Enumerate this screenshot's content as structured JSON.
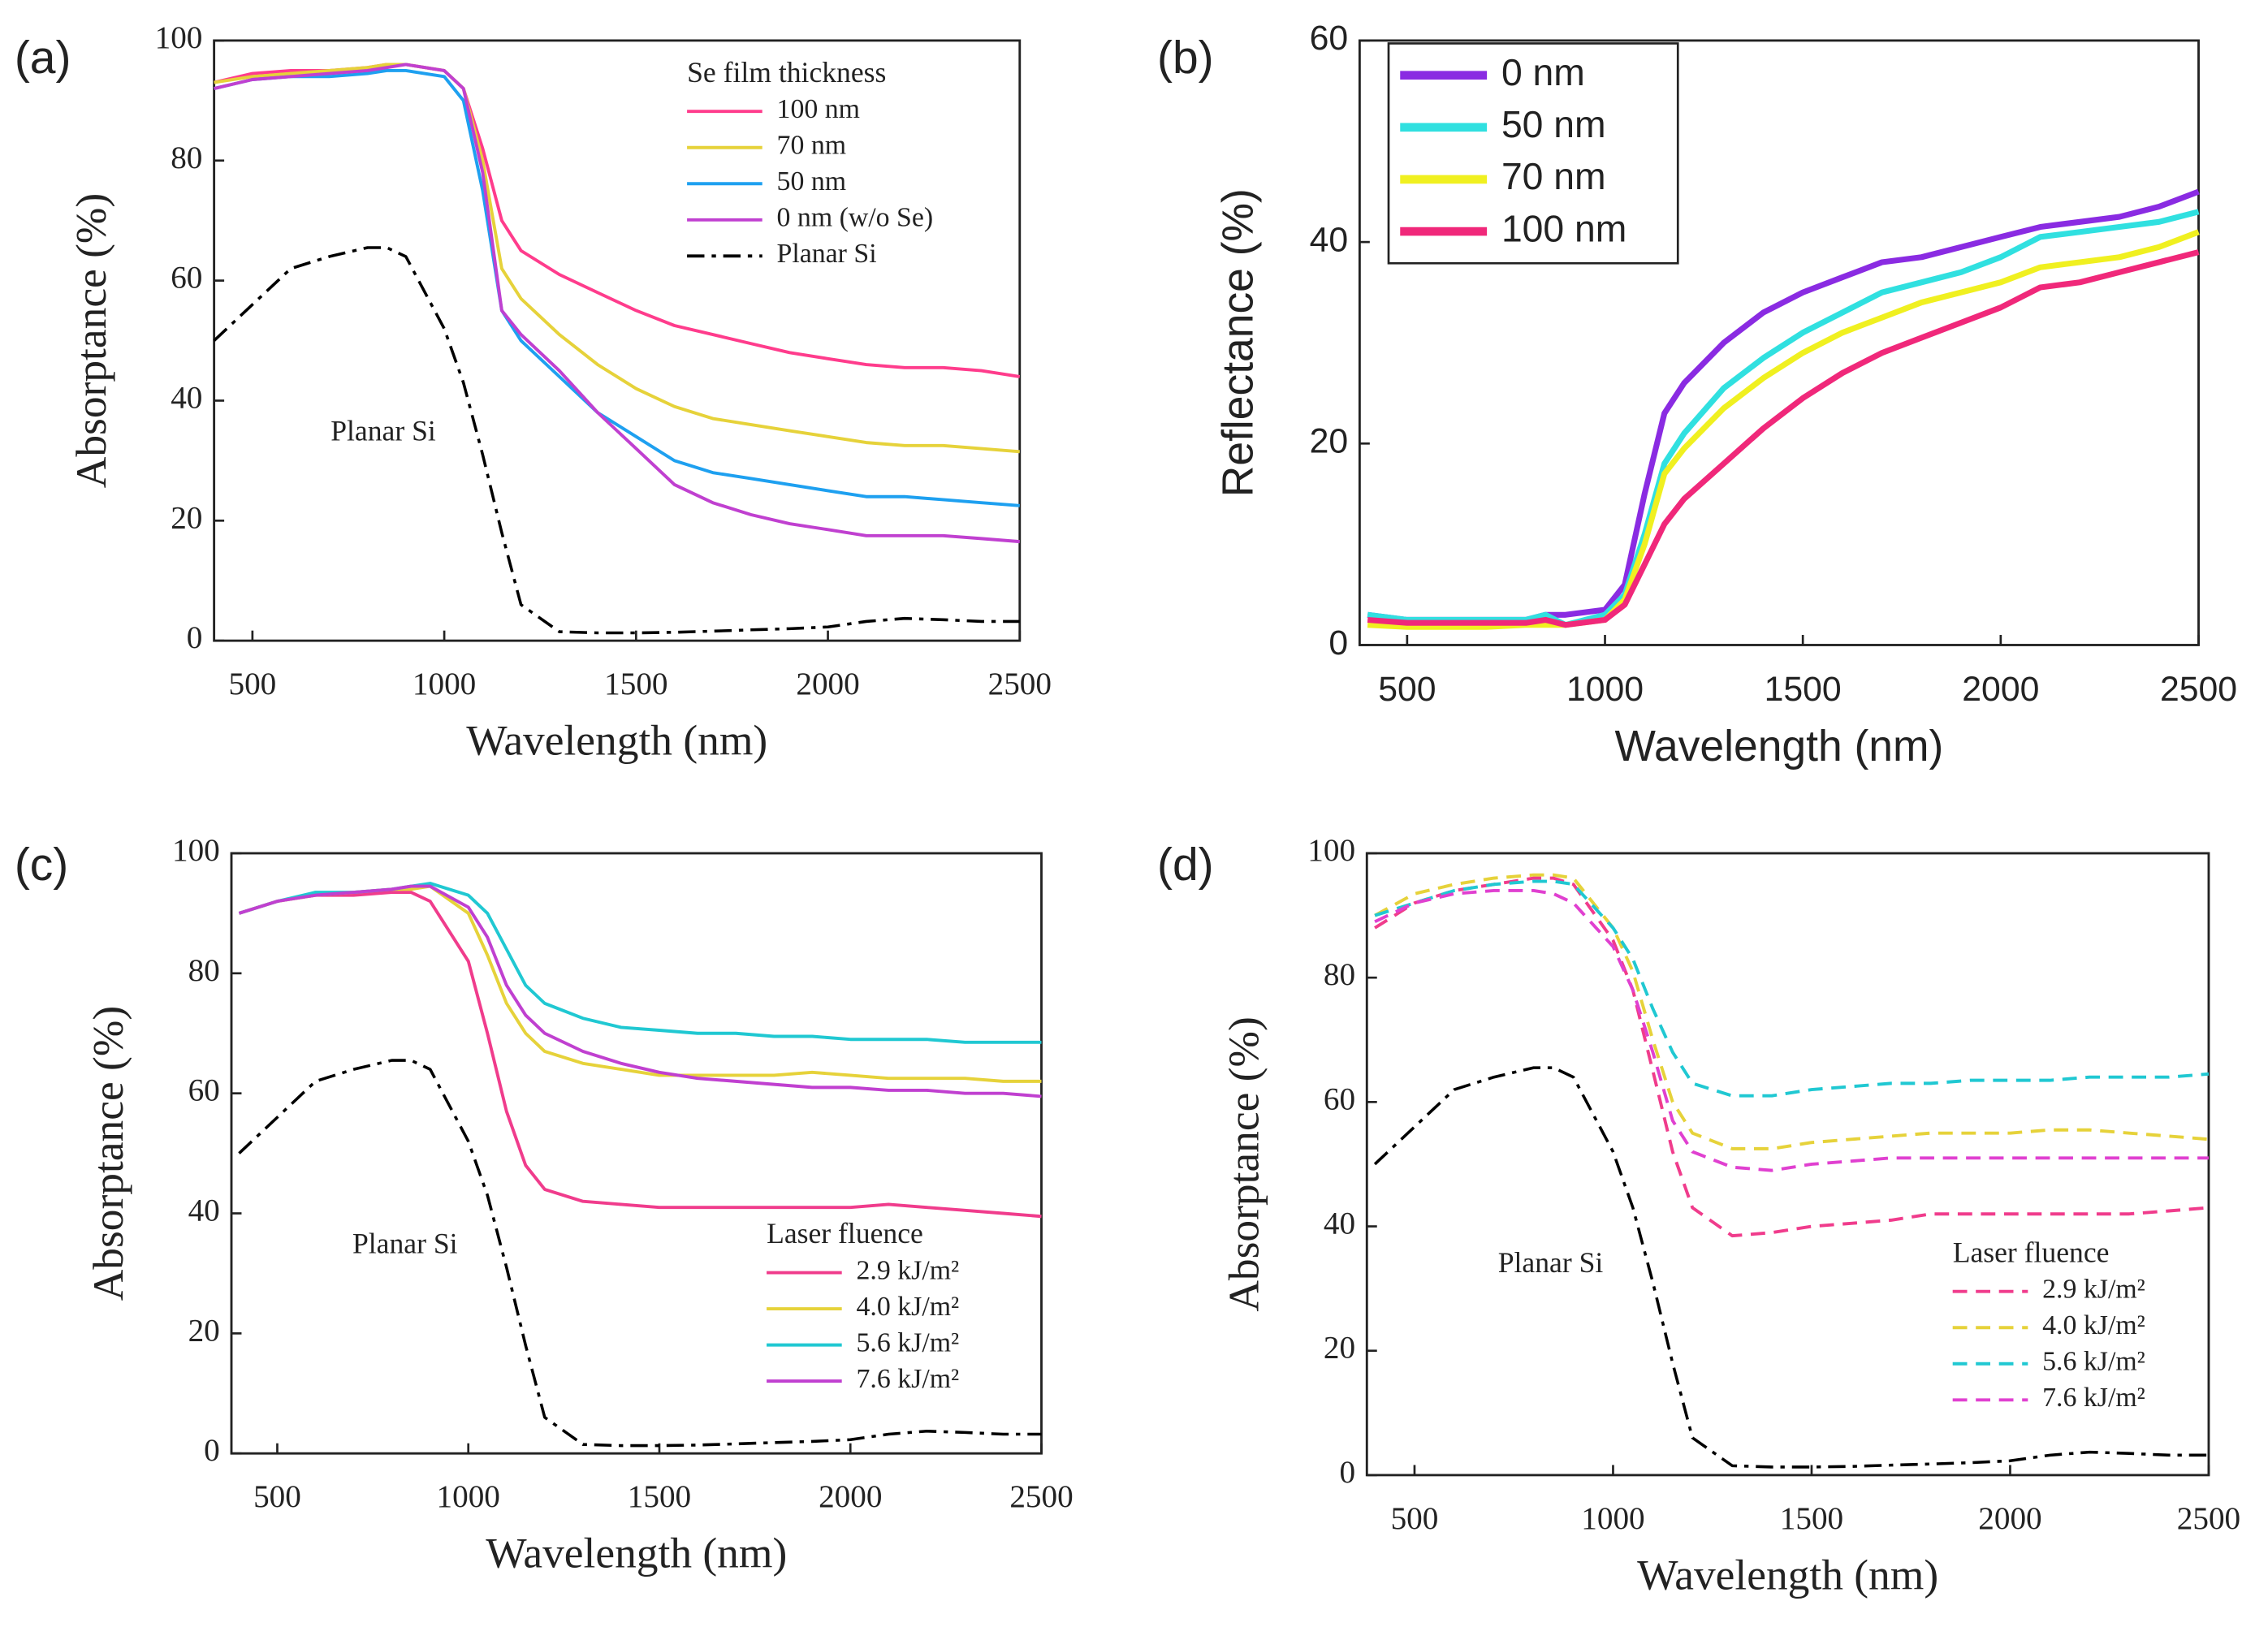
{
  "chart_data": [
    {
      "type": "line",
      "label": "(a)",
      "xlabel": "Wavelength (nm)",
      "ylabel": "Absorptance (%)",
      "legend_title": "Se film thickness",
      "legend": "upper right",
      "annotation": "Planar Si",
      "font": "serif",
      "xlim": [
        400,
        2500
      ],
      "xticks": [
        500,
        1000,
        1500,
        2000,
        2500
      ],
      "ylim": [
        0,
        100
      ],
      "yticks": [
        0,
        20,
        40,
        60,
        80,
        100
      ],
      "x": [
        400,
        500,
        600,
        700,
        800,
        850,
        900,
        1000,
        1050,
        1100,
        1150,
        1200,
        1300,
        1400,
        1500,
        1600,
        1700,
        1800,
        1900,
        2000,
        2100,
        2200,
        2300,
        2400,
        2500
      ],
      "series": [
        {
          "name": "100 nm",
          "color": "#ff3c8c",
          "values": [
            93,
            94.5,
            95,
            95,
            95.5,
            96,
            96,
            95,
            92,
            82,
            70,
            65,
            61,
            58,
            55,
            52.5,
            51,
            49.5,
            48,
            47,
            46,
            45.5,
            45.5,
            45,
            44
          ]
        },
        {
          "name": "70 nm",
          "color": "#e6d23a",
          "values": [
            93,
            94,
            94.5,
            95,
            95.5,
            96,
            96,
            95,
            92,
            80,
            62,
            57,
            51,
            46,
            42,
            39,
            37,
            36,
            35,
            34,
            33,
            32.5,
            32.5,
            32,
            31.5
          ]
        },
        {
          "name": "50 nm",
          "color": "#1ea0f0",
          "values": [
            92,
            93.5,
            94,
            94,
            94.5,
            95,
            95,
            94,
            90,
            75,
            55,
            50,
            44,
            38,
            34,
            30,
            28,
            27,
            26,
            25,
            24,
            24,
            23.5,
            23,
            22.5
          ]
        },
        {
          "name": "0 nm (w/o Se)",
          "color": "#c040d0",
          "values": [
            92,
            93.5,
            94,
            94.5,
            95,
            95.5,
            96,
            95,
            92,
            78,
            55,
            51,
            45,
            38,
            32,
            26,
            23,
            21,
            19.5,
            18.5,
            17.5,
            17.5,
            17.5,
            17,
            16.5
          ]
        },
        {
          "name": "Planar Si",
          "color": "#000000",
          "dash": "dashdot",
          "values": [
            50,
            56,
            62,
            64,
            65.5,
            65.5,
            64,
            52,
            43,
            31,
            18,
            6,
            1.5,
            1.3,
            1.3,
            1.4,
            1.6,
            1.8,
            2,
            2.3,
            3.2,
            3.7,
            3.5,
            3.2,
            3.2
          ]
        }
      ]
    },
    {
      "type": "line",
      "label": "(b)",
      "xlabel": "Wavelength (nm)",
      "ylabel": "Reflectance (%)",
      "legend": "upper left",
      "font": "sans",
      "xlim": [
        380,
        2500
      ],
      "xticks": [
        500,
        1000,
        1500,
        2000,
        2500
      ],
      "ylim": [
        0,
        60
      ],
      "yticks": [
        0,
        20,
        40,
        60
      ],
      "x": [
        400,
        500,
        600,
        700,
        800,
        850,
        900,
        1000,
        1050,
        1100,
        1150,
        1200,
        1300,
        1400,
        1500,
        1600,
        1700,
        1800,
        1900,
        2000,
        2100,
        2200,
        2300,
        2400,
        2500
      ],
      "series": [
        {
          "name": "0 nm",
          "color": "#8a2be2",
          "values": [
            3,
            2.5,
            2.5,
            2.5,
            2.5,
            3,
            3,
            3.5,
            6,
            15,
            23,
            26,
            30,
            33,
            35,
            36.5,
            38,
            38.5,
            39.5,
            40.5,
            41.5,
            42,
            42.5,
            43.5,
            45
          ]
        },
        {
          "name": "50 nm",
          "color": "#30e0e0",
          "values": [
            3,
            2.5,
            2.5,
            2.5,
            2.5,
            3,
            2,
            3,
            5,
            11,
            18,
            21,
            25.5,
            28.5,
            31,
            33,
            35,
            36,
            37,
            38.5,
            40.5,
            41,
            41.5,
            42,
            43
          ]
        },
        {
          "name": "70 nm",
          "color": "#f0f020",
          "values": [
            2,
            1.8,
            1.8,
            1.8,
            2,
            2,
            2,
            2.5,
            4.5,
            10,
            17,
            19.5,
            23.5,
            26.5,
            29,
            31,
            32.5,
            34,
            35,
            36,
            37.5,
            38,
            38.5,
            39.5,
            41
          ]
        },
        {
          "name": "100 nm",
          "color": "#f0287a",
          "values": [
            2.5,
            2.2,
            2.2,
            2.2,
            2.2,
            2.5,
            2,
            2.5,
            4,
            8,
            12,
            14.5,
            18,
            21.5,
            24.5,
            27,
            29,
            30.5,
            32,
            33.5,
            35.5,
            36,
            37,
            38,
            39
          ]
        }
      ]
    },
    {
      "type": "line",
      "label": "(c)",
      "xlabel": "Wavelength (nm)",
      "ylabel": "Absorptance (%)",
      "legend_title": "Laser fluence",
      "legend": "lower right",
      "annotation": "Planar Si",
      "font": "serif",
      "xlim": [
        380,
        2500
      ],
      "xticks": [
        500,
        1000,
        1500,
        2000,
        2500
      ],
      "ylim": [
        0,
        100
      ],
      "yticks": [
        0,
        20,
        40,
        60,
        80,
        100
      ],
      "x": [
        400,
        500,
        600,
        700,
        800,
        850,
        900,
        1000,
        1050,
        1100,
        1150,
        1200,
        1300,
        1400,
        1500,
        1600,
        1700,
        1800,
        1900,
        2000,
        2100,
        2200,
        2300,
        2400,
        2500
      ],
      "series": [
        {
          "name": "2.9 kJ/m²",
          "color": "#f03c8c",
          "values": [
            90,
            92,
            93,
            93,
            93.5,
            93.5,
            92,
            82,
            70,
            57,
            48,
            44,
            42,
            41.5,
            41,
            41,
            41,
            41,
            41,
            41,
            41.5,
            41,
            40.5,
            40,
            39.5
          ]
        },
        {
          "name": "4.0 kJ/m²",
          "color": "#e6d23a",
          "values": [
            90,
            92,
            93,
            93.5,
            94,
            94,
            94.5,
            90,
            83,
            75,
            70,
            67,
            65,
            64,
            63,
            63,
            63,
            63,
            63.5,
            63,
            62.5,
            62.5,
            62.5,
            62,
            62
          ]
        },
        {
          "name": "5.6 kJ/m²",
          "color": "#20c8d2",
          "values": [
            90,
            92,
            93.5,
            93.5,
            94,
            94.5,
            95,
            93,
            90,
            84,
            78,
            75,
            72.5,
            71,
            70.5,
            70,
            70,
            69.5,
            69.5,
            69,
            69,
            69,
            68.5,
            68.5,
            68.5
          ]
        },
        {
          "name": "7.6 kJ/m²",
          "color": "#c040d0",
          "values": [
            90,
            92,
            93,
            93.5,
            94,
            94.5,
            94.5,
            91,
            86,
            78,
            73,
            70,
            67,
            65,
            63.5,
            62.5,
            62,
            61.5,
            61,
            61,
            60.5,
            60.5,
            60,
            60,
            59.5
          ]
        },
        {
          "color": "#000000",
          "dash": "dashdot",
          "values": [
            50,
            56,
            62,
            64,
            65.5,
            65.5,
            64,
            52,
            43,
            31,
            18,
            6,
            1.5,
            1.3,
            1.3,
            1.4,
            1.6,
            1.8,
            2,
            2.3,
            3.2,
            3.7,
            3.5,
            3.2,
            3.2
          ]
        }
      ]
    },
    {
      "type": "line",
      "label": "(d)",
      "xlabel": "Wavelength (nm)",
      "ylabel": "Absorptance (%)",
      "legend_title": "Laser fluence",
      "legend": "lower right",
      "annotation": "Planar Si",
      "font": "serif",
      "xlim": [
        380,
        2500
      ],
      "xticks": [
        500,
        1000,
        1500,
        2000,
        2500
      ],
      "ylim": [
        0,
        100
      ],
      "yticks": [
        0,
        20,
        40,
        60,
        80,
        100
      ],
      "x": [
        400,
        500,
        600,
        700,
        800,
        850,
        900,
        1000,
        1050,
        1100,
        1150,
        1200,
        1300,
        1400,
        1500,
        1600,
        1700,
        1800,
        1900,
        2000,
        2100,
        2200,
        2300,
        2400,
        2500
      ],
      "series": [
        {
          "name": "2.9 kJ/m²",
          "color": "#f03c8c",
          "dash": "dash",
          "values": [
            88,
            92,
            94,
            95,
            96,
            96,
            95,
            86,
            78,
            65,
            52,
            43,
            38.5,
            39,
            40,
            40.5,
            41,
            42,
            42,
            42,
            42,
            42,
            42,
            42.5,
            43
          ]
        },
        {
          "name": "4.0 kJ/m²",
          "color": "#e6d23a",
          "dash": "dash",
          "values": [
            90,
            93.5,
            95,
            96,
            96.5,
            96.5,
            96,
            88,
            81,
            70,
            60,
            55,
            52.5,
            52.5,
            53.5,
            54,
            54.5,
            55,
            55,
            55,
            55.5,
            55.5,
            55,
            54.5,
            54
          ]
        },
        {
          "name": "5.6 kJ/m²",
          "color": "#20c8d2",
          "dash": "dash",
          "values": [
            90,
            92,
            94,
            95,
            95.5,
            95.5,
            95,
            88,
            83,
            75,
            68,
            63,
            61,
            61,
            62,
            62.5,
            63,
            63,
            63.5,
            63.5,
            63.5,
            64,
            64,
            64,
            64.5
          ]
        },
        {
          "name": "7.6 kJ/m²",
          "color": "#e040d0",
          "dash": "dash",
          "values": [
            89,
            92,
            93.5,
            94,
            94,
            93.5,
            92,
            85,
            78,
            68,
            57,
            52,
            49.5,
            49,
            50,
            50.5,
            51,
            51,
            51,
            51,
            51,
            51,
            51,
            51,
            51
          ]
        },
        {
          "color": "#000000",
          "dash": "dashdot",
          "values": [
            50,
            56,
            62,
            64,
            65.5,
            65.5,
            64,
            52,
            43,
            31,
            18,
            6,
            1.5,
            1.3,
            1.3,
            1.4,
            1.6,
            1.8,
            2,
            2.3,
            3.2,
            3.7,
            3.5,
            3.2,
            3.2
          ]
        }
      ]
    }
  ]
}
